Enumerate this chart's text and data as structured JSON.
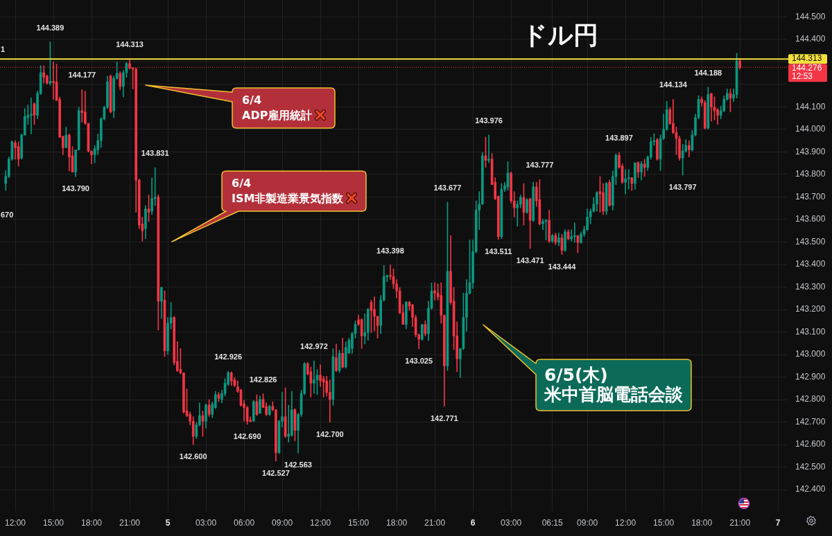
{
  "chart_data": {
    "type": "candlestick",
    "title": "ドル円",
    "x": [
      "--06-04T11:15",
      "--06-04T11:30",
      "--06-04T11:45",
      "--06-04T12:00",
      "--06-04T12:15",
      "--06-04T12:30",
      "--06-04T12:45",
      "--06-04T13:00",
      "--06-04T13:15",
      "--06-04T13:30",
      "--06-04T13:45",
      "--06-04T14:00",
      "--06-04T14:15",
      "--06-04T14:30",
      "--06-04T14:45",
      "--06-04T15:00",
      "--06-04T15:15",
      "--06-04T15:30",
      "--06-04T15:45",
      "--06-04T16:00",
      "--06-04T16:15",
      "--06-04T16:30",
      "--06-04T16:45",
      "--06-04T17:00",
      "--06-04T17:15",
      "--06-04T17:30",
      "--06-04T17:45",
      "--06-04T18:00",
      "--06-04T18:15",
      "--06-04T18:30",
      "--06-04T18:45",
      "--06-04T19:00",
      "--06-04T19:15",
      "--06-04T19:30",
      "--06-04T19:45",
      "--06-04T20:00",
      "--06-04T20:15",
      "--06-04T20:30",
      "--06-04T20:45",
      "--06-04T21:00",
      "--06-04T21:15",
      "--06-04T21:30",
      "--06-04T21:45",
      "--06-04T22:00",
      "--06-04T22:15",
      "--06-04T22:30",
      "--06-04T22:45",
      "--06-04T23:00",
      "--06-04T23:15",
      "--06-04T23:30",
      "--06-04T23:45",
      "--06-05T00:00",
      "--06-05T00:15",
      "--06-05T00:30",
      "--06-05T00:45",
      "--06-05T01:00",
      "--06-05T01:15",
      "--06-05T01:30",
      "--06-05T01:45",
      "--06-05T02:00",
      "--06-05T02:15",
      "--06-05T02:30",
      "--06-05T02:45",
      "--06-05T03:00",
      "--06-05T03:15",
      "--06-05T03:30",
      "--06-05T03:45",
      "--06-05T04:00",
      "--06-05T04:15",
      "--06-05T04:30",
      "--06-05T04:45",
      "--06-05T05:00",
      "--06-05T05:15",
      "--06-05T05:30",
      "--06-05T05:45",
      "--06-05T06:00",
      "--06-05T06:15",
      "--06-05T06:30",
      "--06-05T06:45",
      "--06-05T07:00",
      "--06-05T07:15",
      "--06-05T07:30",
      "--06-05T07:45",
      "--06-05T08:00",
      "--06-05T08:15",
      "--06-05T08:30",
      "--06-05T08:45",
      "--06-05T09:00",
      "--06-05T09:15",
      "--06-05T09:30",
      "--06-05T09:45",
      "--06-05T10:00",
      "--06-05T10:15",
      "--06-05T10:30",
      "--06-05T10:45",
      "--06-05T11:00",
      "--06-05T11:15",
      "--06-05T11:30",
      "--06-05T11:45",
      "--06-05T12:00",
      "--06-05T12:15",
      "--06-05T12:30",
      "--06-05T12:45",
      "--06-05T13:00",
      "--06-05T13:15",
      "--06-05T13:30",
      "--06-05T13:45",
      "--06-05T14:00",
      "--06-05T14:15",
      "--06-05T14:30",
      "--06-05T14:45",
      "--06-05T15:00",
      "--06-05T15:15",
      "--06-05T15:30",
      "--06-05T15:45",
      "--06-05T16:00",
      "--06-05T16:15",
      "--06-05T16:30",
      "--06-05T16:45",
      "--06-05T17:00",
      "--06-05T17:15",
      "--06-05T17:30",
      "--06-05T17:45",
      "--06-05T18:00",
      "--06-05T18:15",
      "--06-05T18:30",
      "--06-05T18:45",
      "--06-05T19:00",
      "--06-05T19:15",
      "--06-05T19:30",
      "--06-05T19:45",
      "--06-05T20:00",
      "--06-05T20:15",
      "--06-05T20:30",
      "--06-05T20:45",
      "--06-05T21:00",
      "--06-05T21:15",
      "--06-05T21:30",
      "--06-05T21:45",
      "--06-05T22:00",
      "--06-05T22:15",
      "--06-05T22:30",
      "--06-05T22:45",
      "--06-05T23:00",
      "--06-05T23:15",
      "--06-05T23:30",
      "--06-05T23:45",
      "--06-06T00:00",
      "--06-06T00:15",
      "--06-06T00:30",
      "--06-06T00:45",
      "--06-06T01:00",
      "--06-06T01:15",
      "--06-06T01:30",
      "--06-06T01:45",
      "--06-06T02:00",
      "--06-06T02:15",
      "--06-06T02:30",
      "--06-06T02:45",
      "--06-06T03:00",
      "--06-06T03:15",
      "--06-06T03:30",
      "--06-06T03:45",
      "--06-06T04:00",
      "--06-06T04:15",
      "--06-06T04:30",
      "--06-06T04:45",
      "--06-06T05:00",
      "--06-06T05:15",
      "--06-06T05:30",
      "--06-06T05:45",
      "--06-06T06:00",
      "--06-06T06:15",
      "--06-06T06:30",
      "--06-06T06:45",
      "--06-06T07:00",
      "--06-06T07:15",
      "--06-06T07:30",
      "--06-06T07:45",
      "--06-06T08:00",
      "--06-06T08:15",
      "--06-06T08:30",
      "--06-06T08:45",
      "--06-06T09:00",
      "--06-06T09:15",
      "--06-06T09:30",
      "--06-06T09:45",
      "--06-06T10:00",
      "--06-06T10:15",
      "--06-06T10:30",
      "--06-06T10:45",
      "--06-06T11:00",
      "--06-06T11:15",
      "--06-06T11:30",
      "--06-06T11:45",
      "--06-06T12:00",
      "--06-06T12:15",
      "--06-06T12:30",
      "--06-06T12:45",
      "--06-06T13:00",
      "--06-06T13:15",
      "--06-06T13:30",
      "--06-06T13:45",
      "--06-06T14:00",
      "--06-06T14:15",
      "--06-06T14:30",
      "--06-06T14:45",
      "--06-06T15:00",
      "--06-06T15:15",
      "--06-06T15:30",
      "--06-06T15:45",
      "--06-06T16:00",
      "--06-06T16:15",
      "--06-06T16:30",
      "--06-06T16:45",
      "--06-06T17:00",
      "--06-06T17:15",
      "--06-06T17:30",
      "--06-06T17:45",
      "--06-06T18:00",
      "--06-06T18:15",
      "--06-06T18:30",
      "--06-06T18:45",
      "--06-06T19:00",
      "--06-06T19:15",
      "--06-06T19:30",
      "--06-06T19:45",
      "--06-06T20:00",
      "--06-06T20:15",
      "--06-06T20:30",
      "--06-06T20:45",
      "--06-06T21:00"
    ],
    "ohlc": [
      [
        143.76,
        143.818,
        143.729,
        143.791
      ],
      [
        143.791,
        143.878,
        143.786,
        143.868
      ],
      [
        143.868,
        143.95,
        143.863,
        143.945
      ],
      [
        143.94,
        143.95,
        143.868,
        143.919
      ],
      [
        143.924,
        143.945,
        143.837,
        143.868
      ],
      [
        143.873,
        143.98,
        143.868,
        143.975
      ],
      [
        143.975,
        144.093,
        143.975,
        144.057
      ],
      [
        144.052,
        144.109,
        144.022,
        144.063
      ],
      [
        144.063,
        144.14,
        143.98,
        144.068
      ],
      [
        144.114,
        144.119,
        144.022,
        144.063
      ],
      [
        144.063,
        144.17,
        144.047,
        144.16
      ],
      [
        144.16,
        144.283,
        144.155,
        144.252
      ],
      [
        144.252,
        144.283,
        144.206,
        144.232
      ],
      [
        144.237,
        144.242,
        144.201,
        144.206
      ],
      [
        144.206,
        144.389,
        144.196,
        144.214
      ],
      [
        144.214,
        144.3,
        144.134,
        144.208
      ],
      [
        144.211,
        144.29,
        144.129,
        144.129
      ],
      [
        144.134,
        144.144,
        143.965,
        143.965
      ],
      [
        143.97,
        143.97,
        143.888,
        143.919
      ],
      [
        143.919,
        144.011,
        143.919,
        143.975
      ],
      [
        143.975,
        143.98,
        143.816,
        143.878
      ],
      [
        143.883,
        143.924,
        143.811,
        143.811
      ],
      [
        143.811,
        143.909,
        143.79,
        143.909
      ],
      [
        143.909,
        144.098,
        143.909,
        144.083
      ],
      [
        144.083,
        144.177,
        144.032,
        144.075
      ],
      [
        144.078,
        144.17,
        144.022,
        144.027
      ],
      [
        144.027,
        144.027,
        143.899,
        143.904
      ],
      [
        143.904,
        143.904,
        143.847,
        143.888
      ],
      [
        143.888,
        143.929,
        143.852,
        143.914
      ],
      [
        143.909,
        143.98,
        143.888,
        143.95
      ],
      [
        143.95,
        144.052,
        143.919,
        144.047
      ],
      [
        144.047,
        144.104,
        144.042,
        144.098
      ],
      [
        144.098,
        144.237,
        144.093,
        144.211
      ],
      [
        144.237,
        144.242,
        144.073,
        144.078
      ],
      [
        144.083,
        144.237,
        144.052,
        144.227
      ],
      [
        144.227,
        144.3,
        144.222,
        144.249
      ],
      [
        144.249,
        144.257,
        144.175,
        144.191
      ],
      [
        144.191,
        144.263,
        144.145,
        144.252
      ],
      [
        144.252,
        144.298,
        144.232,
        144.293
      ],
      [
        144.293,
        144.313,
        144.268,
        144.273
      ],
      [
        144.273,
        144.275,
        144.18,
        144.268
      ],
      [
        144.268,
        144.273,
        143.632,
        143.775
      ],
      [
        143.775,
        143.78,
        143.56,
        143.575
      ],
      [
        143.58,
        143.611,
        143.504,
        143.55
      ],
      [
        143.56,
        143.662,
        143.514,
        143.647
      ],
      [
        143.647,
        143.709,
        143.591,
        143.632
      ],
      [
        143.637,
        143.785,
        143.622,
        143.693
      ],
      [
        143.693,
        143.831,
        143.662,
        143.699
      ],
      [
        143.699,
        143.71,
        143.109,
        143.237
      ],
      [
        143.237,
        143.3,
        143.16,
        143.298
      ],
      [
        143.242,
        143.283,
        142.991,
        143.017
      ],
      [
        143.017,
        143.165,
        143.001,
        143.14
      ],
      [
        143.14,
        143.232,
        143.114,
        143.165
      ],
      [
        143.165,
        143.17,
        142.955,
        142.965
      ],
      [
        142.97,
        143.058,
        142.924,
        142.929
      ],
      [
        142.934,
        143.027,
        142.914,
        142.919
      ],
      [
        142.919,
        142.919,
        142.739,
        142.745
      ],
      [
        142.75,
        142.847,
        142.724,
        142.729
      ],
      [
        142.734,
        142.745,
        142.688,
        142.704
      ],
      [
        142.704,
        142.724,
        142.6,
        142.637
      ],
      [
        142.637,
        142.698,
        142.627,
        142.688
      ],
      [
        142.688,
        142.786,
        142.683,
        142.729
      ],
      [
        142.729,
        142.75,
        142.637,
        142.704
      ],
      [
        142.704,
        142.781,
        142.673,
        142.776
      ],
      [
        142.776,
        142.8,
        142.725,
        142.735
      ],
      [
        142.735,
        142.79,
        142.72,
        142.78
      ],
      [
        142.765,
        142.837,
        142.76,
        142.822
      ],
      [
        142.822,
        142.832,
        142.791,
        142.806
      ],
      [
        142.801,
        142.842,
        142.786,
        142.827
      ],
      [
        142.827,
        142.893,
        142.816,
        142.873
      ],
      [
        142.868,
        142.926,
        142.863,
        142.919
      ],
      [
        142.919,
        142.924,
        142.863,
        142.883
      ],
      [
        142.888,
        142.898,
        142.857,
        142.863
      ],
      [
        142.857,
        142.883,
        142.832,
        142.837
      ],
      [
        142.842,
        142.847,
        142.77,
        142.775
      ],
      [
        142.781,
        142.796,
        142.704,
        142.765
      ],
      [
        142.765,
        142.77,
        142.69,
        142.704
      ],
      [
        142.709,
        142.724,
        142.7,
        142.704
      ],
      [
        142.704,
        142.796,
        142.704,
        142.791
      ],
      [
        142.791,
        142.822,
        142.729,
        142.734
      ],
      [
        142.739,
        142.816,
        142.739,
        142.801
      ],
      [
        142.801,
        142.826,
        142.765,
        142.765
      ],
      [
        142.77,
        142.786,
        142.729,
        142.734
      ],
      [
        142.734,
        142.775,
        142.729,
        142.77
      ],
      [
        142.77,
        142.791,
        142.75,
        142.755
      ],
      [
        142.755,
        142.755,
        142.527,
        142.565
      ],
      [
        142.565,
        142.709,
        142.56,
        142.704
      ],
      [
        142.704,
        142.832,
        142.678,
        142.724
      ],
      [
        142.724,
        142.852,
        142.632,
        142.637
      ],
      [
        142.637,
        142.775,
        142.611,
        142.647
      ],
      [
        142.642,
        142.837,
        142.637,
        142.755
      ],
      [
        142.755,
        142.76,
        142.617,
        142.663
      ],
      [
        142.663,
        142.739,
        142.563,
        142.734
      ],
      [
        142.734,
        142.842,
        142.724,
        142.827
      ],
      [
        142.827,
        142.965,
        142.822,
        142.96
      ],
      [
        142.96,
        142.965,
        142.909,
        142.914
      ],
      [
        142.924,
        142.945,
        142.811,
        142.873
      ],
      [
        142.873,
        142.972,
        142.827,
        142.888
      ],
      [
        142.888,
        142.934,
        142.822,
        142.909
      ],
      [
        142.909,
        142.955,
        142.857,
        142.883
      ],
      [
        142.893,
        142.904,
        142.811,
        142.878
      ],
      [
        142.883,
        142.904,
        142.816,
        142.832
      ],
      [
        142.832,
        142.888,
        142.7,
        142.801
      ],
      [
        142.801,
        143.027,
        142.775,
        142.991
      ],
      [
        142.986,
        143.047,
        142.924,
        142.929
      ],
      [
        142.929,
        143.02,
        142.92,
        143.006
      ],
      [
        143.006,
        143.073,
        142.94,
        142.945
      ],
      [
        142.945,
        143.057,
        142.94,
        143.032
      ],
      [
        143.006,
        143.073,
        143.006,
        143.063
      ],
      [
        143.027,
        143.098,
        143.006,
        143.093
      ],
      [
        143.093,
        143.15,
        143.073,
        143.134
      ],
      [
        143.155,
        143.175,
        143.129,
        143.134
      ],
      [
        143.155,
        143.16,
        143.027,
        143.083
      ],
      [
        143.083,
        143.181,
        143.047,
        143.098
      ],
      [
        143.098,
        143.206,
        143.063,
        143.201
      ],
      [
        143.232,
        143.242,
        143.098,
        143.196
      ],
      [
        143.201,
        143.257,
        143.104,
        143.17
      ],
      [
        143.17,
        143.17,
        143.073,
        143.129
      ],
      [
        143.129,
        143.263,
        143.093,
        143.242
      ],
      [
        143.242,
        143.396,
        143.237,
        143.347
      ],
      [
        143.345,
        143.352,
        143.324,
        143.352
      ],
      [
        143.352,
        143.398,
        143.334,
        143.347
      ],
      [
        143.347,
        143.381,
        143.293,
        143.314
      ],
      [
        143.314,
        143.334,
        143.252,
        143.283
      ],
      [
        143.283,
        143.298,
        143.181,
        143.186
      ],
      [
        143.186,
        143.222,
        143.134,
        143.134
      ],
      [
        143.134,
        143.237,
        143.114,
        143.232
      ],
      [
        143.232,
        143.237,
        143.196,
        143.216
      ],
      [
        143.222,
        143.222,
        143.124,
        143.165
      ],
      [
        143.165,
        143.175,
        143.078,
        143.088
      ],
      [
        143.088,
        143.093,
        143.025,
        143.068
      ],
      [
        143.068,
        143.134,
        143.063,
        143.134
      ],
      [
        143.134,
        143.15,
        143.083,
        143.093
      ],
      [
        143.093,
        143.237,
        143.063,
        143.206
      ],
      [
        143.206,
        143.319,
        143.201,
        143.283
      ],
      [
        143.283,
        143.319,
        143.242,
        143.273
      ],
      [
        143.273,
        143.314,
        143.242,
        143.257
      ],
      [
        143.263,
        143.319,
        143.139,
        143.175
      ],
      [
        143.175,
        143.175,
        142.771,
        142.95
      ],
      [
        142.95,
        143.677,
        142.929,
        143.37
      ],
      [
        143.37,
        143.529,
        143.222,
        143.232
      ],
      [
        143.237,
        143.298,
        143.022,
        143.083
      ],
      [
        143.083,
        143.145,
        142.924,
        142.981
      ],
      [
        142.981,
        143.027,
        142.898,
        143.027
      ],
      [
        143.027,
        143.273,
        143.022,
        143.165
      ],
      [
        143.165,
        143.334,
        143.104,
        143.273
      ],
      [
        143.273,
        143.509,
        143.268,
        143.319
      ],
      [
        143.319,
        143.509,
        143.293,
        143.457
      ],
      [
        143.457,
        143.683,
        143.452,
        143.642
      ],
      [
        143.642,
        143.724,
        143.555,
        143.668
      ],
      [
        143.668,
        143.898,
        143.668,
        143.883
      ],
      [
        143.883,
        143.966,
        143.832,
        143.863
      ],
      [
        143.863,
        143.976,
        143.852,
        143.868
      ],
      [
        143.868,
        143.893,
        143.755,
        143.755
      ],
      [
        143.765,
        143.786,
        143.688,
        143.693
      ],
      [
        143.704,
        143.704,
        143.511,
        143.524
      ],
      [
        143.524,
        143.76,
        143.515,
        143.734
      ],
      [
        143.734,
        143.765,
        143.724,
        143.75
      ],
      [
        143.745,
        143.857,
        143.729,
        143.806
      ],
      [
        143.806,
        143.811,
        143.673,
        143.683
      ],
      [
        143.683,
        143.724,
        143.611,
        143.652
      ],
      [
        143.652,
        143.683,
        143.57,
        143.668
      ],
      [
        143.668,
        143.709,
        143.652,
        143.698
      ],
      [
        143.698,
        143.76,
        143.575,
        143.632
      ],
      [
        143.632,
        143.693,
        143.627,
        143.688
      ],
      [
        143.693,
        143.693,
        143.471,
        143.596
      ],
      [
        143.596,
        143.765,
        143.591,
        143.745
      ],
      [
        143.745,
        143.765,
        143.658,
        143.683
      ],
      [
        143.688,
        143.777,
        143.575,
        143.581
      ],
      [
        143.581,
        143.601,
        143.555,
        143.591
      ],
      [
        143.591,
        143.601,
        143.509,
        143.596
      ],
      [
        143.596,
        143.642,
        143.498,
        143.504
      ],
      [
        143.504,
        143.535,
        143.498,
        143.529
      ],
      [
        143.529,
        143.54,
        143.488,
        143.498
      ],
      [
        143.498,
        143.54,
        143.483,
        143.519
      ],
      [
        143.519,
        143.535,
        143.444,
        143.463
      ],
      [
        143.463,
        143.555,
        143.458,
        143.545
      ],
      [
        143.545,
        143.555,
        143.509,
        143.514
      ],
      [
        143.514,
        143.555,
        143.504,
        143.524
      ],
      [
        143.524,
        143.585,
        143.498,
        143.529
      ],
      [
        143.529,
        143.529,
        143.452,
        143.498
      ],
      [
        143.498,
        143.545,
        143.493,
        143.535
      ],
      [
        143.535,
        143.57,
        143.524,
        143.555
      ],
      [
        143.555,
        143.647,
        143.55,
        143.611
      ],
      [
        143.611,
        143.647,
        143.581,
        143.637
      ],
      [
        143.637,
        143.698,
        143.632,
        143.668
      ],
      [
        143.668,
        143.724,
        143.637,
        143.719
      ],
      [
        143.724,
        143.791,
        143.632,
        143.714
      ],
      [
        143.719,
        143.76,
        143.622,
        143.637
      ],
      [
        143.637,
        143.765,
        143.622,
        143.76
      ],
      [
        143.765,
        143.775,
        143.658,
        143.663
      ],
      [
        143.663,
        143.816,
        143.642,
        143.791
      ],
      [
        143.791,
        143.893,
        143.755,
        143.885
      ],
      [
        143.885,
        143.897,
        143.827,
        143.832
      ],
      [
        143.837,
        143.847,
        143.76,
        143.765
      ],
      [
        143.765,
        143.822,
        143.714,
        143.781
      ],
      [
        143.781,
        143.822,
        143.734,
        143.786
      ],
      [
        143.786,
        143.786,
        143.729,
        143.76
      ],
      [
        143.76,
        143.852,
        143.734,
        143.852
      ],
      [
        143.852,
        143.857,
        143.786,
        143.811
      ],
      [
        143.811,
        143.857,
        143.775,
        143.847
      ],
      [
        143.847,
        143.868,
        143.791,
        143.832
      ],
      [
        143.832,
        143.883,
        143.817,
        143.878
      ],
      [
        143.878,
        143.965,
        143.868,
        143.945
      ],
      [
        143.945,
        143.981,
        143.929,
        143.95
      ],
      [
        143.955,
        143.96,
        143.863,
        143.868
      ],
      [
        143.868,
        143.976,
        143.817,
        143.96
      ],
      [
        143.96,
        144.068,
        143.955,
        144.001
      ],
      [
        144.001,
        144.125,
        143.996,
        144.088
      ],
      [
        144.088,
        144.098,
        144.022,
        144.027
      ],
      [
        144.027,
        144.134,
        143.981,
        143.986
      ],
      [
        143.986,
        144.011,
        143.888,
        143.96
      ],
      [
        143.96,
        143.97,
        143.863,
        143.873
      ],
      [
        143.873,
        143.935,
        143.797,
        143.904
      ],
      [
        143.904,
        143.955,
        143.899,
        143.929
      ],
      [
        143.929,
        143.95,
        143.878,
        143.909
      ],
      [
        143.909,
        143.996,
        143.904,
        143.976
      ],
      [
        143.976,
        144.068,
        143.97,
        144.052
      ],
      [
        144.052,
        144.15,
        144.047,
        144.134
      ],
      [
        144.134,
        144.145,
        144.104,
        144.119
      ],
      [
        144.119,
        144.129,
        144.001,
        144.006
      ],
      [
        144.006,
        144.188,
        144.001,
        144.155
      ],
      [
        144.16,
        144.16,
        144.037,
        144.099
      ],
      [
        144.099,
        144.145,
        144.042,
        144.083
      ],
      [
        144.088,
        144.093,
        144.022,
        144.063
      ],
      [
        144.063,
        144.104,
        144.047,
        144.083
      ],
      [
        144.083,
        144.15,
        144.078,
        144.134
      ],
      [
        144.134,
        144.18,
        144.129,
        144.16
      ],
      [
        144.16,
        144.18,
        144.078,
        144.139
      ],
      [
        144.139,
        144.18,
        144.124,
        144.155
      ],
      [
        144.155,
        144.338,
        144.139,
        144.304
      ],
      [
        144.304,
        144.314,
        144.268,
        144.276
      ]
    ],
    "xlim": [
      "--06-04T10:48",
      "--06-07T00:42"
    ],
    "xticks": [
      {
        "value": "--06-04T12:00",
        "label": "12:00"
      },
      {
        "value": "--06-04T15:00",
        "label": "15:00"
      },
      {
        "value": "--06-04T18:00",
        "label": "18:00"
      },
      {
        "value": "--06-04T21:00",
        "label": "21:00"
      },
      {
        "value": "--06-05T00:00",
        "label": "5"
      },
      {
        "value": "--06-05T03:00",
        "label": "03:00"
      },
      {
        "value": "--06-05T06:00",
        "label": "06:00"
      },
      {
        "value": "--06-05T09:00",
        "label": "09:00"
      },
      {
        "value": "--06-05T12:00",
        "label": "12:00"
      },
      {
        "value": "--06-05T15:00",
        "label": "15:00"
      },
      {
        "value": "--06-05T18:00",
        "label": "18:00"
      },
      {
        "value": "--06-05T21:00",
        "label": "21:00"
      },
      {
        "value": "--06-06T00:00",
        "label": "6"
      },
      {
        "value": "--06-06T03:00",
        "label": "03:00"
      },
      {
        "value": "--06-06T06:15",
        "label": "06:15"
      },
      {
        "value": "--06-06T09:00",
        "label": "09:00"
      },
      {
        "value": "--06-06T12:00",
        "label": "12:00"
      },
      {
        "value": "--06-06T15:00",
        "label": "15:00"
      },
      {
        "value": "--06-06T18:00",
        "label": "18:00"
      },
      {
        "value": "--06-06T21:00",
        "label": "21:00"
      },
      {
        "value": "--06-07T00:00",
        "label": "7"
      }
    ],
    "ylim": [
      142.305,
      144.575
    ],
    "yticks": [
      {
        "value": 142.4,
        "label": "142.400"
      },
      {
        "value": 142.5,
        "label": "142.500"
      },
      {
        "value": 142.6,
        "label": "142.600"
      },
      {
        "value": 142.7,
        "label": "142.700"
      },
      {
        "value": 142.8,
        "label": "142.800"
      },
      {
        "value": 142.9,
        "label": "142.900"
      },
      {
        "value": 143,
        "label": "143.000"
      },
      {
        "value": 143.1,
        "label": "143.100"
      },
      {
        "value": 143.2,
        "label": "143.200"
      },
      {
        "value": 143.3,
        "label": "143.300"
      },
      {
        "value": 143.4,
        "label": "143.400"
      },
      {
        "value": 143.5,
        "label": "143.500"
      },
      {
        "value": 143.6,
        "label": "143.600"
      },
      {
        "value": 143.7,
        "label": "143.700"
      },
      {
        "value": 143.8,
        "label": "143.800"
      },
      {
        "value": 143.9,
        "label": "143.900"
      },
      {
        "value": 144,
        "label": "144.000"
      },
      {
        "value": 144.1,
        "label": "144.100"
      },
      {
        "value": 144.2,
        "label": null
      },
      {
        "value": 144.3,
        "label": null
      },
      {
        "value": 144.4,
        "label": "144.400"
      },
      {
        "value": 144.5,
        "label": "144.500"
      }
    ],
    "grid": true,
    "ref_lines": [
      {
        "axis": "y",
        "value": 144.313,
        "label": "144.313",
        "color": "#f5e13c",
        "line_style": "solid"
      },
      {
        "axis": "y",
        "value": 144.276,
        "label": "144.276\n12:53",
        "color": "#f23645",
        "line_style": "dotted"
      }
    ],
    "annotations": [
      "6/4\nADP雇用統計",
      "6/4\nISM非製造業景気指数",
      "6/5(木)\n米中首脳電話会談",
      "1",
      "670",
      {
        "text": "144.389",
        "x": "--06-04T14:45",
        "y": 144.389
      },
      {
        "text": "144.177",
        "x": "--06-04T17:15",
        "y": 144.177
      },
      {
        "text": "143.790",
        "x": "--06-04T16:45",
        "y": 143.79
      },
      {
        "text": "144.313",
        "x": "--06-04T21:00",
        "y": 144.313
      },
      {
        "text": "143.831",
        "x": "--06-04T23:00",
        "y": 143.831
      },
      {
        "text": "142.600",
        "x": "--06-05T02:00",
        "y": 142.6
      },
      {
        "text": "142.926",
        "x": "--06-05T04:45",
        "y": 142.926
      },
      {
        "text": "142.690",
        "x": "--06-05T06:15",
        "y": 142.69
      },
      {
        "text": "142.826",
        "x": "--06-05T07:30",
        "y": 142.826
      },
      {
        "text": "142.527",
        "x": "--06-05T08:30",
        "y": 142.527
      },
      {
        "text": "142.563",
        "x": "--06-05T10:15",
        "y": 142.563
      },
      {
        "text": "142.972",
        "x": "--06-05T11:30",
        "y": 142.972
      },
      {
        "text": "142.700",
        "x": "--06-05T12:45",
        "y": 142.7
      },
      {
        "text": "143.398",
        "x": "--06-05T17:30",
        "y": 143.398
      },
      {
        "text": "143.025",
        "x": "--06-05T19:45",
        "y": 143.025
      },
      {
        "text": "142.771",
        "x": "--06-05T21:45",
        "y": 142.771
      },
      {
        "text": "143.677",
        "x": "--06-05T22:00",
        "y": 143.677
      },
      {
        "text": "143.976",
        "x": "--06-06T01:15",
        "y": 143.976
      },
      {
        "text": "143.511",
        "x": "--06-06T02:00",
        "y": 143.511
      },
      {
        "text": "143.471",
        "x": "--06-06T04:30",
        "y": 143.471
      },
      {
        "text": "143.777",
        "x": "--06-06T05:15",
        "y": 143.777
      },
      {
        "text": "143.444",
        "x": "--06-06T07:00",
        "y": 143.444
      },
      {
        "text": "143.897",
        "x": "--06-06T11:30",
        "y": 143.897
      },
      {
        "text": "144.134",
        "x": "--06-06T15:45",
        "y": 144.134
      },
      {
        "text": "143.797",
        "x": "--06-06T16:30",
        "y": 143.797
      },
      {
        "text": "144.188",
        "x": "--06-06T18:30",
        "y": 144.188
      }
    ]
  }
}
